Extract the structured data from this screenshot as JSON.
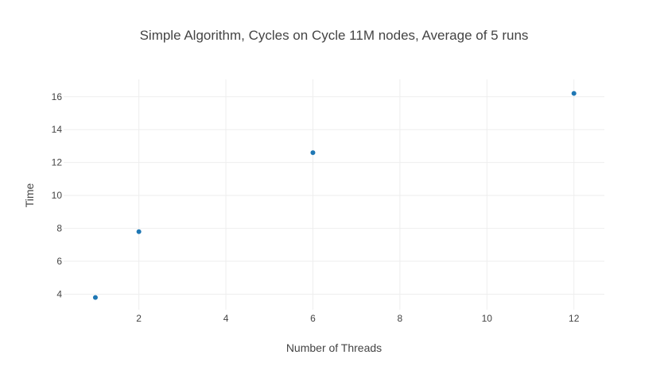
{
  "chart_data": {
    "type": "scatter",
    "title": "Simple Algorithm, Cycles on Cycle 11M nodes, Average of 5 runs",
    "xlabel": "Number of Threads",
    "ylabel": "Time",
    "x": [
      1,
      2,
      6,
      12
    ],
    "y": [
      3.8,
      7.8,
      12.6,
      16.2
    ],
    "xlim": [
      0.27,
      12.7
    ],
    "ylim": [
      3.06,
      17.05
    ],
    "xticks": [
      2,
      4,
      6,
      8,
      10,
      12
    ],
    "xtick_labels": [
      "2",
      "4",
      "6",
      "8",
      "10",
      "12"
    ],
    "yticks": [
      4,
      6,
      8,
      10,
      12,
      14,
      16
    ],
    "ytick_labels": [
      "4",
      "6",
      "8",
      "10",
      "12",
      "14",
      "16"
    ],
    "grid": true,
    "colors": {
      "marker": "#1f77b4",
      "grid": "#eeeeee",
      "text": "#444444"
    }
  }
}
